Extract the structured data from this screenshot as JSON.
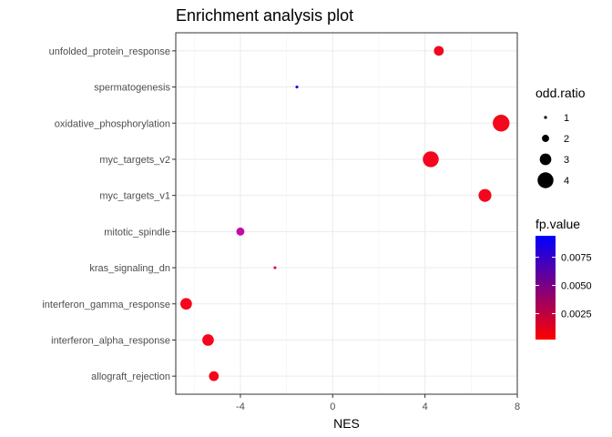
{
  "chart_data": {
    "type": "scatter",
    "title": "Enrichment analysis plot",
    "xlabel": "NES",
    "ylabel": "",
    "xlim": [
      -6.8,
      8.0
    ],
    "x_ticks": [
      -4,
      0,
      4,
      8
    ],
    "x_tick_labels": [
      "-4",
      "0",
      "4",
      "8"
    ],
    "grid": true,
    "categories": [
      "allograft_rejection",
      "interferon_alpha_response",
      "interferon_gamma_response",
      "kras_signaling_dn",
      "mitotic_spindle",
      "myc_targets_v1",
      "myc_targets_v2",
      "oxidative_phosphorylation",
      "spermatogenesis",
      "unfolded_protein_response"
    ],
    "points": [
      {
        "term": "unfolded_protein_response",
        "nes": 4.6,
        "odd_ratio": 2.6,
        "fp_value": 0.0003,
        "color": "#f4071e"
      },
      {
        "term": "spermatogenesis",
        "nes": -1.55,
        "odd_ratio": 1.0,
        "fp_value": 0.0092,
        "color": "#1f00f0"
      },
      {
        "term": "oxidative_phosphorylation",
        "nes": 7.3,
        "odd_ratio": 4.2,
        "fp_value": 0.0002,
        "color": "#f4081c"
      },
      {
        "term": "myc_targets_v2",
        "nes": 4.25,
        "odd_ratio": 4.0,
        "fp_value": 0.0003,
        "color": "#f4061f"
      },
      {
        "term": "myc_targets_v1",
        "nes": 6.6,
        "odd_ratio": 3.3,
        "fp_value": 0.0003,
        "color": "#f4071e"
      },
      {
        "term": "mitotic_spindle",
        "nes": -4.0,
        "odd_ratio": 2.2,
        "fp_value": 0.0058,
        "color": "#c10ca6"
      },
      {
        "term": "kras_signaling_dn",
        "nes": -2.5,
        "odd_ratio": 1.0,
        "fp_value": 0.0018,
        "color": "#e6084a"
      },
      {
        "term": "interferon_gamma_response",
        "nes": -6.35,
        "odd_ratio": 3.0,
        "fp_value": 0.0003,
        "color": "#f4071e"
      },
      {
        "term": "interferon_alpha_response",
        "nes": -5.4,
        "odd_ratio": 3.0,
        "fp_value": 0.0003,
        "color": "#f4071e"
      },
      {
        "term": "allograft_rejection",
        "nes": -5.15,
        "odd_ratio": 2.6,
        "fp_value": 0.0003,
        "color": "#f4071e"
      }
    ],
    "size_legend": {
      "title": "odd.ratio",
      "entries": [
        {
          "label": "1",
          "value": 1
        },
        {
          "label": "2",
          "value": 2
        },
        {
          "label": "3",
          "value": 3
        },
        {
          "label": "4",
          "value": 4
        }
      ]
    },
    "color_legend": {
      "title": "fp.value",
      "low_color": "#ff0000",
      "high_color": "#0000ff",
      "range": [
        0.0002,
        0.0094
      ],
      "ticks": [
        0.0025,
        0.005,
        0.0075
      ],
      "tick_labels": [
        "0.0025",
        "0.0050",
        "0.0075"
      ]
    }
  }
}
